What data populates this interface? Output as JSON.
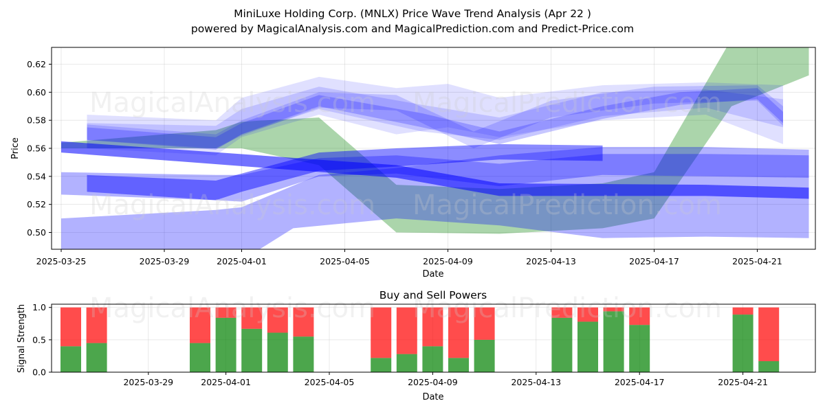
{
  "title_line1": "MiniLuxe Holding Corp. (MNLX) Price Wave Trend Analysis (Apr 22 )",
  "title_line2": "powered by MagicalAnalysis.com and MagicalPrediction.com and Predict-Price.com",
  "watermarks": [
    "MagicalAnalysis.com",
    "MagicalPrediction.com"
  ],
  "colors": {
    "blue_band": "#0000ff",
    "green_band": "#008000",
    "buy": "#008000",
    "sell": "#ff0000"
  },
  "chart_data": [
    {
      "type": "area",
      "xlabel": "Date",
      "ylabel": "Price",
      "x_ticks": [
        "2025-03-25",
        "2025-03-29",
        "2025-04-01",
        "2025-04-05",
        "2025-04-09",
        "2025-04-13",
        "2025-04-17",
        "2025-04-21"
      ],
      "y_ticks": [
        "0.50",
        "0.52",
        "0.54",
        "0.56",
        "0.58",
        "0.60",
        "0.62"
      ],
      "xlim": [
        "2025-03-25",
        "2025-04-23"
      ],
      "ylim": [
        0.488,
        0.632
      ],
      "grid": true,
      "series": [
        {
          "color": "green",
          "opacity": 0.33,
          "upper": [
            [
              "2025-03-25",
              0.564
            ],
            [
              "2025-03-31",
              0.573
            ],
            [
              "2025-04-01",
              0.579
            ],
            [
              "2025-04-04",
              0.582
            ],
            [
              "2025-04-07",
              0.534
            ],
            [
              "2025-04-11",
              0.531
            ],
            [
              "2025-04-15",
              0.535
            ],
            [
              "2025-04-17",
              0.543
            ],
            [
              "2025-04-20",
              0.638
            ],
            [
              "2025-04-23",
              0.638
            ]
          ],
          "lower": [
            [
              "2025-03-25",
              0.56
            ],
            [
              "2025-03-31",
              0.56
            ],
            [
              "2025-04-01",
              0.56
            ],
            [
              "2025-04-04",
              0.548
            ],
            [
              "2025-04-07",
              0.5
            ],
            [
              "2025-04-11",
              0.499
            ],
            [
              "2025-04-15",
              0.503
            ],
            [
              "2025-04-17",
              0.51
            ],
            [
              "2025-04-20",
              0.59
            ],
            [
              "2025-04-23",
              0.612
            ]
          ]
        },
        {
          "color": "blue",
          "opacity": 0.3,
          "upper": [
            [
              "2025-03-25",
              0.51
            ],
            [
              "2025-03-31",
              0.516
            ],
            [
              "2025-04-01",
              0.518
            ],
            [
              "2025-04-04",
              0.541
            ],
            [
              "2025-04-07",
              0.546
            ],
            [
              "2025-04-11",
              0.555
            ],
            [
              "2025-04-15",
              0.561
            ],
            [
              "2025-04-19",
              0.561
            ],
            [
              "2025-04-23",
              0.559
            ]
          ],
          "lower": [
            [
              "2025-03-25",
              0.48
            ],
            [
              "2025-03-31",
              0.48
            ],
            [
              "2025-04-01",
              0.48
            ],
            [
              "2025-04-03",
              0.503
            ],
            [
              "2025-04-07",
              0.51
            ],
            [
              "2025-04-11",
              0.505
            ],
            [
              "2025-04-15",
              0.496
            ],
            [
              "2025-04-19",
              0.497
            ],
            [
              "2025-04-23",
              0.496
            ]
          ]
        },
        {
          "color": "blue",
          "opacity": 0.3,
          "upper": [
            [
              "2025-03-25",
              0.543
            ],
            [
              "2025-03-31",
              0.541
            ],
            [
              "2025-04-01",
              0.541
            ],
            [
              "2025-04-04",
              0.553
            ],
            [
              "2025-04-07",
              0.555
            ],
            [
              "2025-04-11",
              0.549
            ],
            [
              "2025-04-15",
              0.556
            ],
            [
              "2025-04-19",
              0.556
            ],
            [
              "2025-04-23",
              0.555
            ]
          ],
          "lower": [
            [
              "2025-03-25",
              0.527
            ],
            [
              "2025-03-31",
              0.523
            ],
            [
              "2025-04-01",
              0.522
            ],
            [
              "2025-04-04",
              0.54
            ],
            [
              "2025-04-07",
              0.542
            ],
            [
              "2025-04-11",
              0.533
            ],
            [
              "2025-04-15",
              0.541
            ],
            [
              "2025-04-19",
              0.54
            ],
            [
              "2025-04-23",
              0.539
            ]
          ]
        },
        {
          "color": "blue",
          "opacity": 0.55,
          "upper": [
            [
              "2025-03-25",
              0.565
            ],
            [
              "2025-04-07",
              0.548
            ],
            [
              "2025-04-11",
              0.535
            ],
            [
              "2025-04-19",
              0.534
            ],
            [
              "2025-04-23",
              0.532
            ]
          ],
          "lower": [
            [
              "2025-03-25",
              0.557
            ],
            [
              "2025-04-07",
              0.539
            ],
            [
              "2025-04-11",
              0.526
            ],
            [
              "2025-04-19",
              0.526
            ],
            [
              "2025-04-23",
              0.524
            ]
          ]
        },
        {
          "color": "blue",
          "opacity": 0.45,
          "upper": [
            [
              "2025-03-26",
              0.541
            ],
            [
              "2025-03-31",
              0.537
            ],
            [
              "2025-04-01",
              0.542
            ],
            [
              "2025-04-04",
              0.557
            ],
            [
              "2025-04-07",
              0.56
            ],
            [
              "2025-04-11",
              0.563
            ],
            [
              "2025-04-15",
              0.562
            ]
          ],
          "lower": [
            [
              "2025-03-26",
              0.529
            ],
            [
              "2025-03-31",
              0.523
            ],
            [
              "2025-04-01",
              0.529
            ],
            [
              "2025-04-04",
              0.544
            ],
            [
              "2025-04-07",
              0.547
            ],
            [
              "2025-04-11",
              0.552
            ],
            [
              "2025-04-15",
              0.551
            ]
          ]
        },
        {
          "color": "blue",
          "opacity": 0.12,
          "upper": [
            [
              "2025-03-26",
              0.584
            ],
            [
              "2025-03-31",
              0.58
            ],
            [
              "2025-04-01",
              0.596
            ],
            [
              "2025-04-04",
              0.611
            ],
            [
              "2025-04-07",
              0.603
            ],
            [
              "2025-04-09",
              0.606
            ],
            [
              "2025-04-11",
              0.596
            ],
            [
              "2025-04-15",
              0.605
            ],
            [
              "2025-04-19",
              0.607
            ],
            [
              "2025-04-22",
              0.605
            ]
          ],
          "lower": [
            [
              "2025-03-26",
              0.56
            ],
            [
              "2025-03-31",
              0.555
            ],
            [
              "2025-04-01",
              0.568
            ],
            [
              "2025-04-04",
              0.584
            ],
            [
              "2025-04-07",
              0.57
            ],
            [
              "2025-04-09",
              0.575
            ],
            [
              "2025-04-11",
              0.568
            ],
            [
              "2025-04-15",
              0.58
            ],
            [
              "2025-04-19",
              0.584
            ],
            [
              "2025-04-22",
              0.563
            ]
          ]
        },
        {
          "color": "blue",
          "opacity": 0.14,
          "upper": [
            [
              "2025-03-26",
              0.578
            ],
            [
              "2025-03-31",
              0.576
            ],
            [
              "2025-04-01",
              0.588
            ],
            [
              "2025-04-04",
              0.604
            ],
            [
              "2025-04-08",
              0.591
            ],
            [
              "2025-04-11",
              0.582
            ],
            [
              "2025-04-15",
              0.6
            ],
            [
              "2025-04-19",
              0.602
            ],
            [
              "2025-04-22",
              0.595
            ]
          ],
          "lower": [
            [
              "2025-03-26",
              0.56
            ],
            [
              "2025-03-31",
              0.56
            ],
            [
              "2025-04-01",
              0.57
            ],
            [
              "2025-04-04",
              0.588
            ],
            [
              "2025-04-08",
              0.572
            ],
            [
              "2025-04-11",
              0.566
            ],
            [
              "2025-04-15",
              0.583
            ],
            [
              "2025-04-19",
              0.589
            ],
            [
              "2025-04-22",
              0.575
            ]
          ]
        },
        {
          "color": "blue",
          "opacity": 0.16,
          "upper": [
            [
              "2025-03-26",
              0.577
            ],
            [
              "2025-03-31",
              0.57
            ],
            [
              "2025-04-01",
              0.58
            ],
            [
              "2025-04-04",
              0.6
            ],
            [
              "2025-04-07",
              0.598
            ],
            [
              "2025-04-10",
              0.572
            ],
            [
              "2025-04-13",
              0.594
            ],
            [
              "2025-04-17",
              0.604
            ],
            [
              "2025-04-21",
              0.605
            ],
            [
              "2025-04-22",
              0.59
            ]
          ],
          "lower": [
            [
              "2025-03-26",
              0.566
            ],
            [
              "2025-03-31",
              0.56
            ],
            [
              "2025-04-01",
              0.569
            ],
            [
              "2025-04-04",
              0.589
            ],
            [
              "2025-04-07",
              0.587
            ],
            [
              "2025-04-10",
              0.56
            ],
            [
              "2025-04-13",
              0.582
            ],
            [
              "2025-04-17",
              0.592
            ],
            [
              "2025-04-21",
              0.594
            ],
            [
              "2025-04-22",
              0.576
            ]
          ]
        },
        {
          "color": "blue",
          "opacity": 0.22,
          "upper": [
            [
              "2025-03-26",
              0.575
            ],
            [
              "2025-03-31",
              0.568
            ],
            [
              "2025-04-01",
              0.578
            ],
            [
              "2025-04-04",
              0.598
            ],
            [
              "2025-04-08",
              0.585
            ],
            [
              "2025-04-11",
              0.572
            ],
            [
              "2025-04-15",
              0.59
            ],
            [
              "2025-04-18",
              0.6
            ],
            [
              "2025-04-21",
              0.603
            ],
            [
              "2025-04-22",
              0.586
            ]
          ],
          "lower": [
            [
              "2025-03-26",
              0.566
            ],
            [
              "2025-03-31",
              0.559
            ],
            [
              "2025-04-01",
              0.57
            ],
            [
              "2025-04-04",
              0.59
            ],
            [
              "2025-04-08",
              0.575
            ],
            [
              "2025-04-11",
              0.563
            ],
            [
              "2025-04-15",
              0.581
            ],
            [
              "2025-04-18",
              0.591
            ],
            [
              "2025-04-21",
              0.595
            ],
            [
              "2025-04-22",
              0.578
            ]
          ]
        }
      ]
    },
    {
      "type": "bar",
      "title": "Buy and Sell Powers",
      "xlabel": "Date",
      "ylabel": "Signal Strength",
      "x_ticks": [
        "2025-03-29",
        "2025-04-01",
        "2025-04-05",
        "2025-04-09",
        "2025-04-13",
        "2025-04-17",
        "2025-04-21"
      ],
      "y_ticks": [
        "0.0",
        "0.5",
        "1.0"
      ],
      "ylim": [
        0,
        1.05
      ],
      "grid": true,
      "categories": [
        "2025-03-26",
        "2025-03-27",
        "2025-03-31",
        "2025-04-01",
        "2025-04-02",
        "2025-04-03",
        "2025-04-04",
        "2025-04-07",
        "2025-04-08",
        "2025-04-09",
        "2025-04-10",
        "2025-04-11",
        "2025-04-14",
        "2025-04-15",
        "2025-04-16",
        "2025-04-17",
        "2025-04-21",
        "2025-04-22"
      ],
      "series": [
        {
          "name": "Buy",
          "values": [
            0.4,
            0.45,
            0.45,
            0.84,
            0.67,
            0.61,
            0.55,
            0.22,
            0.28,
            0.4,
            0.22,
            0.5,
            0.84,
            0.78,
            0.94,
            0.73,
            0.89,
            0.17
          ]
        },
        {
          "name": "Sell",
          "values": [
            0.6,
            0.55,
            0.55,
            0.16,
            0.33,
            0.39,
            0.45,
            0.78,
            0.72,
            0.6,
            0.78,
            0.5,
            0.16,
            0.22,
            0.06,
            0.27,
            0.11,
            0.83
          ]
        }
      ]
    }
  ]
}
